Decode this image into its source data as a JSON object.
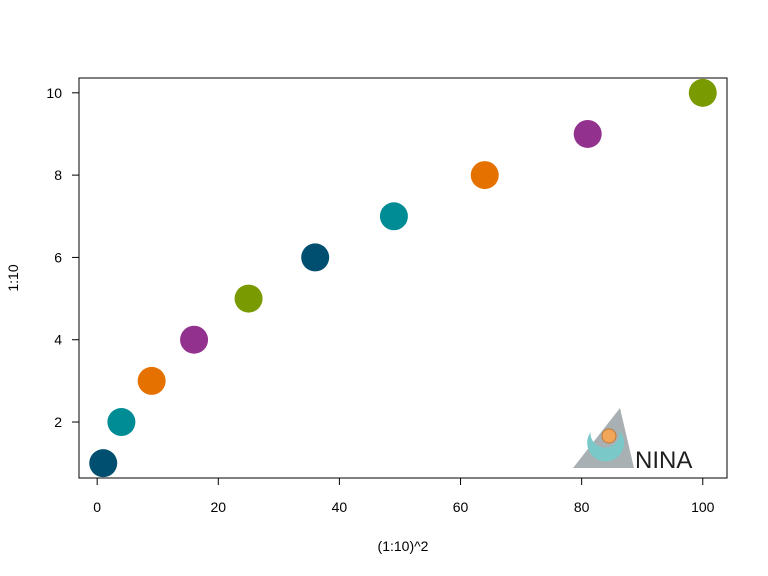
{
  "chart_data": {
    "type": "scatter",
    "title": "",
    "xlabel": "(1:10)^2",
    "ylabel": "1:10",
    "x": [
      1,
      4,
      9,
      16,
      25,
      36,
      49,
      64,
      81,
      100
    ],
    "y": [
      1,
      2,
      3,
      4,
      5,
      6,
      7,
      8,
      9,
      10
    ],
    "point_colors": [
      "#004f71",
      "#008c95",
      "#e57200",
      "#93328e",
      "#7a9a01",
      "#004f71",
      "#008c95",
      "#e57200",
      "#93328e",
      "#7a9a01"
    ],
    "xlim": [
      -3,
      104
    ],
    "ylim": [
      0.64,
      10.36
    ],
    "xticks": [
      0,
      20,
      40,
      60,
      80,
      100
    ],
    "yticks": [
      2,
      4,
      6,
      8,
      10
    ],
    "grid": false,
    "legend": "none"
  },
  "logo": {
    "name": "NINA",
    "text": "NINA",
    "colors": {
      "triangle": "#a9b0b4",
      "crescent": "#7ac9c8",
      "dot": "#f2a65a"
    }
  }
}
